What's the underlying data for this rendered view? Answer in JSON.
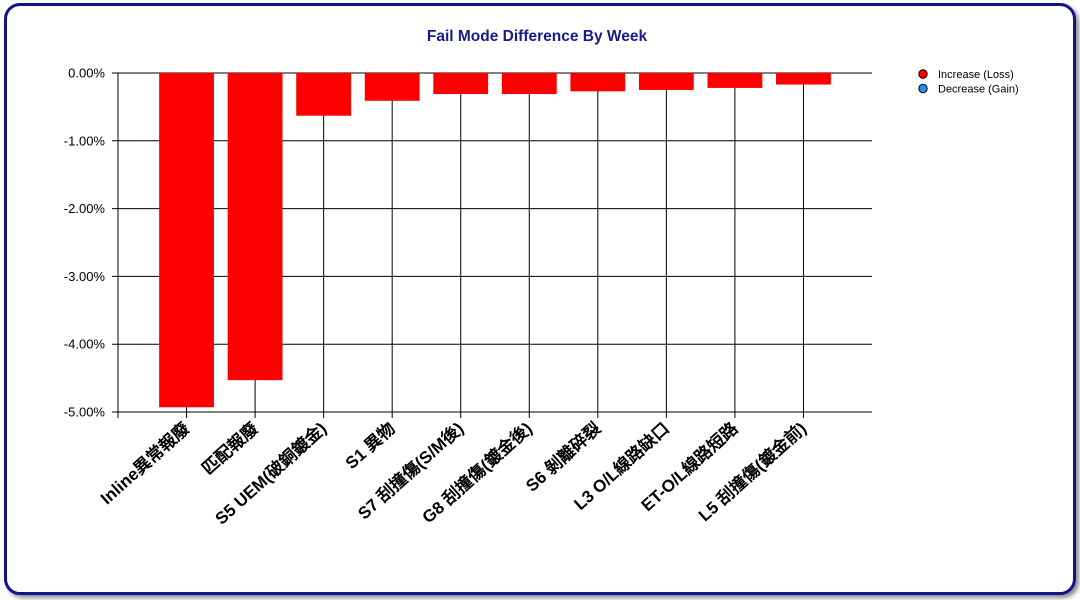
{
  "chart_data": {
    "type": "bar",
    "title": "Fail Mode Difference By Week",
    "xlabel": "",
    "ylabel": "",
    "categories": [
      "Inline異常報廢",
      "匹配報廢",
      "S5 UEM(破銅鍍金)",
      "S1 異物",
      "S7 刮撞傷(S/M後)",
      "G8 刮撞傷(鍍金後)",
      "S6 剝離碎裂",
      "L3 O/L線路缺口",
      "ET-O/L線路短路",
      "L5 刮撞傷(鍍金前)"
    ],
    "series": [
      {
        "name": "Increase (Loss)",
        "color": "#ff0000",
        "values": [
          -4.93,
          -4.53,
          -0.63,
          -0.41,
          -0.31,
          -0.31,
          -0.27,
          -0.25,
          -0.22,
          -0.17
        ]
      },
      {
        "name": "Decrease (Gain)",
        "color": "#1e90ff",
        "values": [
          0,
          0,
          0,
          0,
          0,
          0,
          0,
          0,
          0,
          0
        ]
      }
    ],
    "yticks": [
      "0.00%",
      "-1.00%",
      "-2.00%",
      "-3.00%",
      "-4.00%",
      "-5.00%"
    ],
    "ylim": [
      -5,
      0
    ],
    "grid": true,
    "legend_position": "top-right"
  }
}
